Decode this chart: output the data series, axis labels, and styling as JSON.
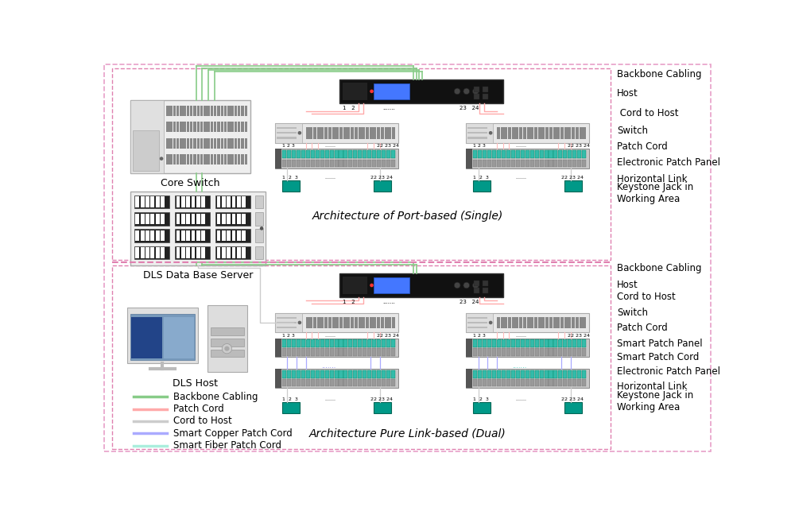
{
  "bg_color": "#ffffff",
  "top_section_label": "Architecture of Port-based (Single)",
  "bottom_section_label": "Architecture Pure Link-based (Dual)",
  "right_labels_top": [
    "Backbone Cabling",
    "Host",
    " Cord to Host",
    "Switch",
    "Patch Cord",
    "Electronic Patch Panel",
    "Horizontal Link",
    "Keystone Jack in\nWorking Area"
  ],
  "right_labels_bottom": [
    "Backbone Cabling",
    "Host",
    "Cord to Host",
    "Switch",
    "Patch Cord",
    "Smart Patch Panel",
    "Smart Patch Cord",
    "Electronic Patch Panel",
    "Horizontal Link",
    "Keystone Jack in\nWorking Area"
  ],
  "legend": [
    {
      "color": "#88cc88",
      "label": "Backbone Cabling"
    },
    {
      "color": "#ffaaaa",
      "label": "Patch Cord"
    },
    {
      "color": "#cccccc",
      "label": "Cord to Host"
    },
    {
      "color": "#aaaaff",
      "label": "Smart Copper Patch Cord"
    },
    {
      "color": "#aaeedd",
      "label": "Smart Fiber Patch Cord"
    }
  ],
  "pink_border": "#e8a0c8",
  "pink_dash": "#e080b0",
  "green_line": "#88cc88",
  "red_line": "#ffaaaa",
  "gray_line": "#cccccc",
  "blue_line": "#aaaaff",
  "cyan_line": "#aaeedd"
}
